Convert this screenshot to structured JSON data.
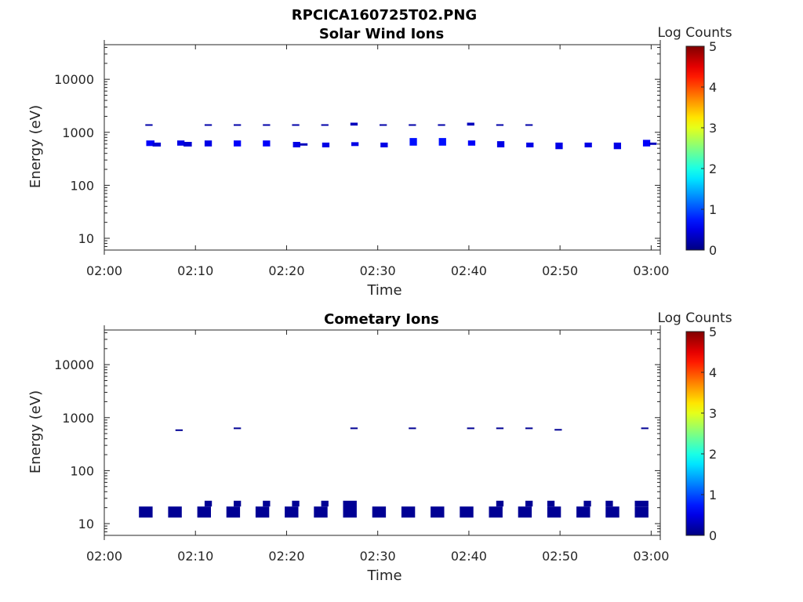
{
  "figure_title": "RPCICA160725T02.PNG",
  "colors": {
    "deep_blue": "#000080",
    "blue": "#0000cd",
    "bright_blue": "#1e3cff"
  },
  "chart_data": [
    {
      "type": "heatmap",
      "title": "Solar Wind Ions",
      "xlabel": "Time",
      "ylabel": "Energy (eV)",
      "y_scale": "log",
      "ylim": [
        6,
        45000
      ],
      "xlim_minutes": [
        0,
        61
      ],
      "x_tick_labels": [
        "02:00",
        "02:10",
        "02:20",
        "02:30",
        "02:40",
        "02:50",
        "03:00"
      ],
      "x_tick_minutes": [
        0,
        10,
        20,
        30,
        40,
        50,
        60
      ],
      "y_ticks": [
        10,
        100,
        1000,
        10000
      ],
      "y_tick_labels": [
        "10",
        "100",
        "1000",
        "10000"
      ],
      "colorbar": {
        "label": "Log Counts",
        "range": [
          0,
          5
        ],
        "ticks": [
          "0",
          "1",
          "2",
          "3",
          "4",
          "5"
        ]
      },
      "blocks": [
        {
          "t": 4.6,
          "dt": 0.9,
          "e0": 550,
          "e1": 700,
          "c": 0.6
        },
        {
          "t": 5.3,
          "dt": 0.9,
          "e0": 540,
          "e1": 640,
          "c": 0.4
        },
        {
          "t": 8.0,
          "dt": 0.8,
          "e0": 560,
          "e1": 700,
          "c": 0.5
        },
        {
          "t": 8.7,
          "dt": 0.9,
          "e0": 540,
          "e1": 660,
          "c": 0.4
        },
        {
          "t": 11.0,
          "dt": 0.8,
          "e0": 540,
          "e1": 700,
          "c": 0.5
        },
        {
          "t": 14.2,
          "dt": 0.8,
          "e0": 540,
          "e1": 700,
          "c": 0.6
        },
        {
          "t": 17.4,
          "dt": 0.8,
          "e0": 540,
          "e1": 700,
          "c": 0.6
        },
        {
          "t": 20.7,
          "dt": 0.8,
          "e0": 520,
          "e1": 660,
          "c": 0.5
        },
        {
          "t": 21.4,
          "dt": 0.9,
          "e0": 560,
          "e1": 620,
          "c": 0.3
        },
        {
          "t": 23.9,
          "dt": 0.8,
          "e0": 520,
          "e1": 640,
          "c": 0.5
        },
        {
          "t": 27.1,
          "dt": 0.8,
          "e0": 550,
          "e1": 650,
          "c": 0.5
        },
        {
          "t": 30.3,
          "dt": 0.8,
          "e0": 520,
          "e1": 640,
          "c": 0.5
        },
        {
          "t": 33.5,
          "dt": 0.8,
          "e0": 560,
          "e1": 780,
          "c": 0.7
        },
        {
          "t": 36.7,
          "dt": 0.8,
          "e0": 560,
          "e1": 780,
          "c": 0.7
        },
        {
          "t": 39.9,
          "dt": 0.8,
          "e0": 560,
          "e1": 700,
          "c": 0.6
        },
        {
          "t": 43.1,
          "dt": 0.8,
          "e0": 520,
          "e1": 680,
          "c": 0.5
        },
        {
          "t": 46.3,
          "dt": 0.8,
          "e0": 520,
          "e1": 640,
          "c": 0.5
        },
        {
          "t": 49.5,
          "dt": 0.8,
          "e0": 480,
          "e1": 640,
          "c": 0.5
        },
        {
          "t": 52.7,
          "dt": 0.8,
          "e0": 520,
          "e1": 640,
          "c": 0.5
        },
        {
          "t": 55.9,
          "dt": 0.8,
          "e0": 480,
          "e1": 640,
          "c": 0.5
        },
        {
          "t": 59.1,
          "dt": 0.8,
          "e0": 540,
          "e1": 720,
          "c": 0.6
        },
        {
          "t": 59.8,
          "dt": 0.8,
          "e0": 580,
          "e1": 640,
          "c": 0.3
        },
        {
          "t": 4.5,
          "dt": 0.8,
          "e0": 1340,
          "e1": 1420,
          "c": 0.2
        },
        {
          "t": 11.0,
          "dt": 0.8,
          "e0": 1340,
          "e1": 1420,
          "c": 0.2
        },
        {
          "t": 14.2,
          "dt": 0.8,
          "e0": 1340,
          "e1": 1420,
          "c": 0.2
        },
        {
          "t": 17.4,
          "dt": 0.8,
          "e0": 1340,
          "e1": 1420,
          "c": 0.2
        },
        {
          "t": 20.6,
          "dt": 0.8,
          "e0": 1340,
          "e1": 1420,
          "c": 0.2
        },
        {
          "t": 23.8,
          "dt": 0.8,
          "e0": 1340,
          "e1": 1420,
          "c": 0.2
        },
        {
          "t": 27.0,
          "dt": 0.8,
          "e0": 1340,
          "e1": 1520,
          "c": 0.3
        },
        {
          "t": 30.2,
          "dt": 0.8,
          "e0": 1340,
          "e1": 1420,
          "c": 0.2
        },
        {
          "t": 33.4,
          "dt": 0.8,
          "e0": 1340,
          "e1": 1420,
          "c": 0.2
        },
        {
          "t": 36.6,
          "dt": 0.8,
          "e0": 1340,
          "e1": 1420,
          "c": 0.2
        },
        {
          "t": 39.8,
          "dt": 0.8,
          "e0": 1340,
          "e1": 1520,
          "c": 0.3
        },
        {
          "t": 43.0,
          "dt": 0.8,
          "e0": 1340,
          "e1": 1420,
          "c": 0.2
        },
        {
          "t": 46.2,
          "dt": 0.8,
          "e0": 1340,
          "e1": 1420,
          "c": 0.2
        }
      ]
    },
    {
      "type": "heatmap",
      "title": "Cometary Ions",
      "xlabel": "Time",
      "ylabel": "Energy (eV)",
      "y_scale": "log",
      "ylim": [
        6,
        45000
      ],
      "xlim_minutes": [
        0,
        61
      ],
      "x_tick_labels": [
        "02:00",
        "02:10",
        "02:20",
        "02:30",
        "02:40",
        "02:50",
        "03:00"
      ],
      "x_tick_minutes": [
        0,
        10,
        20,
        30,
        40,
        50,
        60
      ],
      "y_ticks": [
        10,
        100,
        1000,
        10000
      ],
      "y_tick_labels": [
        "10",
        "100",
        "1000",
        "10000"
      ],
      "colorbar": {
        "label": "Log Counts",
        "range": [
          0,
          5
        ],
        "ticks": [
          "0",
          "1",
          "2",
          "3",
          "4",
          "5"
        ]
      },
      "blocks": [
        {
          "t": 3.8,
          "dt": 1.5,
          "e0": 13,
          "e1": 21,
          "c": 0.1
        },
        {
          "t": 7.0,
          "dt": 1.5,
          "e0": 13,
          "e1": 21,
          "c": 0.1
        },
        {
          "t": 10.2,
          "dt": 1.5,
          "e0": 13,
          "e1": 21,
          "c": 0.1
        },
        {
          "t": 11.0,
          "dt": 0.8,
          "e0": 21,
          "e1": 27,
          "c": 0.1
        },
        {
          "t": 13.4,
          "dt": 1.5,
          "e0": 13,
          "e1": 21,
          "c": 0.1
        },
        {
          "t": 14.2,
          "dt": 0.8,
          "e0": 21,
          "e1": 27,
          "c": 0.1
        },
        {
          "t": 16.6,
          "dt": 1.5,
          "e0": 13,
          "e1": 21,
          "c": 0.1
        },
        {
          "t": 17.4,
          "dt": 0.8,
          "e0": 21,
          "e1": 27,
          "c": 0.1
        },
        {
          "t": 19.8,
          "dt": 1.5,
          "e0": 13,
          "e1": 21,
          "c": 0.1
        },
        {
          "t": 20.6,
          "dt": 0.8,
          "e0": 21,
          "e1": 27,
          "c": 0.1
        },
        {
          "t": 23.0,
          "dt": 1.5,
          "e0": 13,
          "e1": 21,
          "c": 0.1
        },
        {
          "t": 23.8,
          "dt": 0.8,
          "e0": 21,
          "e1": 27,
          "c": 0.1
        },
        {
          "t": 26.2,
          "dt": 1.5,
          "e0": 13,
          "e1": 27,
          "c": 0.1
        },
        {
          "t": 29.4,
          "dt": 1.5,
          "e0": 13,
          "e1": 21,
          "c": 0.1
        },
        {
          "t": 32.6,
          "dt": 1.5,
          "e0": 13,
          "e1": 21,
          "c": 0.1
        },
        {
          "t": 35.8,
          "dt": 1.5,
          "e0": 13,
          "e1": 21,
          "c": 0.1
        },
        {
          "t": 39.0,
          "dt": 1.5,
          "e0": 13,
          "e1": 21,
          "c": 0.1
        },
        {
          "t": 42.2,
          "dt": 1.5,
          "e0": 13,
          "e1": 21,
          "c": 0.1
        },
        {
          "t": 43.0,
          "dt": 0.8,
          "e0": 21,
          "e1": 27,
          "c": 0.1
        },
        {
          "t": 45.4,
          "dt": 1.5,
          "e0": 13,
          "e1": 21,
          "c": 0.1
        },
        {
          "t": 46.2,
          "dt": 0.8,
          "e0": 21,
          "e1": 27,
          "c": 0.1
        },
        {
          "t": 48.6,
          "dt": 1.5,
          "e0": 13,
          "e1": 21,
          "c": 0.1
        },
        {
          "t": 48.6,
          "dt": 0.8,
          "e0": 21,
          "e1": 27,
          "c": 0.1
        },
        {
          "t": 51.8,
          "dt": 1.5,
          "e0": 13,
          "e1": 21,
          "c": 0.1
        },
        {
          "t": 52.6,
          "dt": 0.8,
          "e0": 21,
          "e1": 27,
          "c": 0.1
        },
        {
          "t": 55.0,
          "dt": 1.5,
          "e0": 13,
          "e1": 21,
          "c": 0.1
        },
        {
          "t": 55.0,
          "dt": 0.8,
          "e0": 21,
          "e1": 27,
          "c": 0.1
        },
        {
          "t": 58.2,
          "dt": 1.5,
          "e0": 13,
          "e1": 21,
          "c": 0.1
        },
        {
          "t": 58.2,
          "dt": 1.5,
          "e0": 21,
          "e1": 27,
          "c": 0.1
        },
        {
          "t": 7.8,
          "dt": 0.8,
          "e0": 560,
          "e1": 600,
          "c": 0.1
        },
        {
          "t": 14.2,
          "dt": 0.8,
          "e0": 610,
          "e1": 650,
          "c": 0.1
        },
        {
          "t": 27.0,
          "dt": 0.8,
          "e0": 610,
          "e1": 650,
          "c": 0.1
        },
        {
          "t": 33.4,
          "dt": 0.8,
          "e0": 610,
          "e1": 650,
          "c": 0.1
        },
        {
          "t": 39.8,
          "dt": 0.8,
          "e0": 610,
          "e1": 650,
          "c": 0.1
        },
        {
          "t": 43.0,
          "dt": 0.8,
          "e0": 610,
          "e1": 650,
          "c": 0.1
        },
        {
          "t": 46.2,
          "dt": 0.8,
          "e0": 610,
          "e1": 650,
          "c": 0.1
        },
        {
          "t": 49.4,
          "dt": 0.8,
          "e0": 570,
          "e1": 610,
          "c": 0.1
        },
        {
          "t": 58.9,
          "dt": 0.8,
          "e0": 610,
          "e1": 650,
          "c": 0.1
        }
      ]
    }
  ]
}
